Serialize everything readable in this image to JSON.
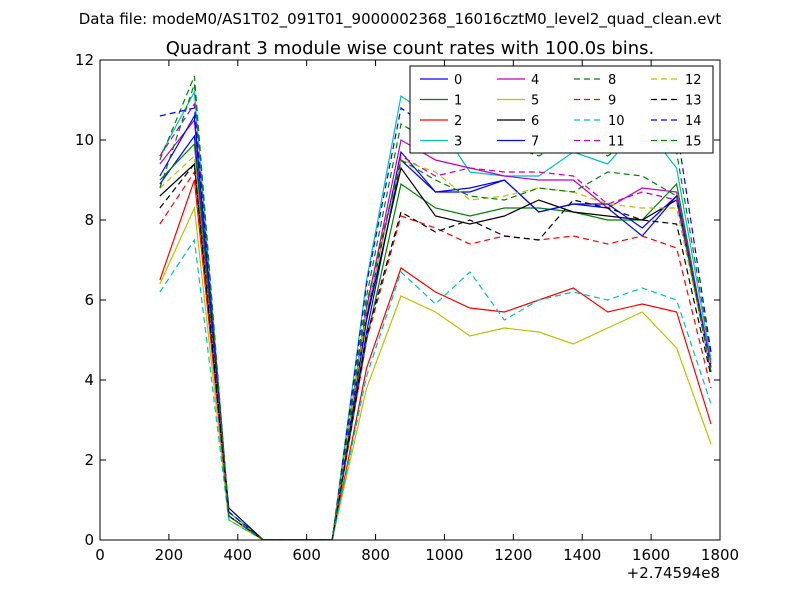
{
  "chart_data": {
    "type": "line",
    "suptitle": "Data file: modeM0/AS1T02_091T01_9000002368_16016cztM0_level2_quad_clean.evt",
    "title": "Quadrant 3 module wise count rates with 100.0s bins.",
    "xlabel": "",
    "ylabel": "",
    "x_offset_label": "+2.74594e8",
    "xlim": [
      0,
      1800
    ],
    "ylim": [
      0,
      12
    ],
    "xticks": [
      0,
      200,
      400,
      600,
      800,
      1000,
      1200,
      1400,
      1600,
      1800
    ],
    "yticks": [
      0,
      2,
      4,
      6,
      8,
      10,
      12
    ],
    "x": [
      174,
      274,
      374,
      474,
      574,
      674,
      774,
      874,
      974,
      1074,
      1174,
      1274,
      1374,
      1474,
      1574,
      1674,
      1774
    ],
    "legend_position": "top-right",
    "legend_columns": 4,
    "series": [
      {
        "name": "0",
        "color": "#0000ff",
        "dash": "solid",
        "values": [
          8.9,
          10.1,
          0.6,
          0,
          0,
          0,
          5.2,
          9.5,
          8.7,
          8.7,
          9.0,
          8.2,
          8.4,
          8.3,
          7.6,
          8.6,
          4.2
        ]
      },
      {
        "name": "1",
        "color": "#008000",
        "dash": "solid",
        "values": [
          9.0,
          9.9,
          0.6,
          0,
          0,
          0,
          5.0,
          8.9,
          8.3,
          8.1,
          8.3,
          8.3,
          8.2,
          8.0,
          8.0,
          8.9,
          4.3
        ]
      },
      {
        "name": "2",
        "color": "#ff0000",
        "dash": "solid",
        "values": [
          6.5,
          9.0,
          0.6,
          0,
          0,
          0,
          4.3,
          6.8,
          6.2,
          5.8,
          5.7,
          6.0,
          6.3,
          5.7,
          5.9,
          5.7,
          2.9
        ]
      },
      {
        "name": "3",
        "color": "#00bfbf",
        "dash": "solid",
        "values": [
          9.6,
          11.2,
          0.7,
          0,
          0,
          0,
          6.5,
          11.1,
          10.5,
          9.2,
          9.1,
          9.1,
          9.7,
          9.4,
          10.4,
          9.3,
          4.5
        ]
      },
      {
        "name": "4",
        "color": "#bf00bf",
        "dash": "solid",
        "values": [
          9.4,
          10.5,
          0.6,
          0,
          0,
          0,
          5.8,
          10.0,
          9.5,
          9.3,
          9.1,
          9.0,
          9.0,
          8.3,
          8.8,
          8.7,
          4.4
        ]
      },
      {
        "name": "5",
        "color": "#bfbf00",
        "dash": "solid",
        "values": [
          6.4,
          8.3,
          0.5,
          0,
          0,
          0,
          3.8,
          6.1,
          5.7,
          5.1,
          5.3,
          5.2,
          4.9,
          5.3,
          5.7,
          4.8,
          2.4
        ]
      },
      {
        "name": "6",
        "color": "#000000",
        "dash": "solid",
        "values": [
          8.6,
          9.4,
          0.8,
          0,
          0,
          0,
          5.5,
          9.3,
          8.1,
          7.9,
          8.1,
          8.5,
          8.2,
          8.1,
          8.0,
          8.5,
          4.3
        ]
      },
      {
        "name": "7",
        "color": "#0000ff",
        "dash": "solid",
        "values": [
          9.1,
          10.6,
          0.6,
          0,
          0,
          0,
          5.6,
          9.7,
          8.7,
          8.8,
          9.0,
          8.2,
          8.4,
          8.4,
          7.8,
          8.6,
          4.3
        ]
      },
      {
        "name": "8",
        "color": "#008000",
        "dash": "dashed",
        "values": [
          9.5,
          11.6,
          0.6,
          0,
          0,
          0,
          6.1,
          10.4,
          9.9,
          10.1,
          9.9,
          9.6,
          10.1,
          9.6,
          10.2,
          9.7,
          4.6
        ]
      },
      {
        "name": "9",
        "color": "#ff0000",
        "dash": "dashed",
        "values": [
          7.9,
          9.2,
          0.6,
          0,
          0,
          0,
          5.0,
          8.1,
          7.8,
          7.4,
          7.6,
          7.5,
          7.6,
          7.4,
          7.6,
          7.3,
          3.8
        ]
      },
      {
        "name": "10",
        "color": "#00bfbf",
        "dash": "dashed",
        "values": [
          6.2,
          7.5,
          0.5,
          0,
          0,
          0,
          4.1,
          6.7,
          5.9,
          6.7,
          5.5,
          6.0,
          6.2,
          6.0,
          6.3,
          6.0,
          3.4
        ]
      },
      {
        "name": "11",
        "color": "#bf00bf",
        "dash": "dashed",
        "values": [
          9.6,
          10.9,
          0.7,
          0,
          0,
          0,
          5.9,
          9.6,
          9.1,
          9.3,
          9.2,
          9.2,
          9.1,
          8.4,
          8.7,
          8.5,
          4.3
        ]
      },
      {
        "name": "12",
        "color": "#bfbf00",
        "dash": "dashed",
        "values": [
          8.8,
          9.6,
          0.6,
          0,
          0,
          0,
          5.7,
          9.5,
          9.2,
          8.5,
          8.6,
          8.8,
          8.7,
          8.4,
          8.3,
          8.3,
          4.3
        ]
      },
      {
        "name": "13",
        "color": "#000000",
        "dash": "dashed",
        "values": [
          8.3,
          9.4,
          0.6,
          0,
          0,
          0,
          5.1,
          8.2,
          7.7,
          8.0,
          7.6,
          7.5,
          8.5,
          8.3,
          8.0,
          7.9,
          4.1
        ]
      },
      {
        "name": "14",
        "color": "#0000ff",
        "dash": "dashed",
        "values": [
          10.6,
          10.8,
          0.7,
          0,
          0,
          0,
          6.4,
          10.8,
          10.2,
          10.0,
          9.8,
          9.9,
          10.2,
          10.3,
          10.3,
          10.3,
          4.7
        ]
      },
      {
        "name": "15",
        "color": "#008000",
        "dash": "dashed",
        "values": [
          8.8,
          11.4,
          0.6,
          0,
          0,
          0,
          5.9,
          9.5,
          9.0,
          8.6,
          8.5,
          8.8,
          8.7,
          9.2,
          9.1,
          8.6,
          4.2
        ]
      }
    ]
  }
}
